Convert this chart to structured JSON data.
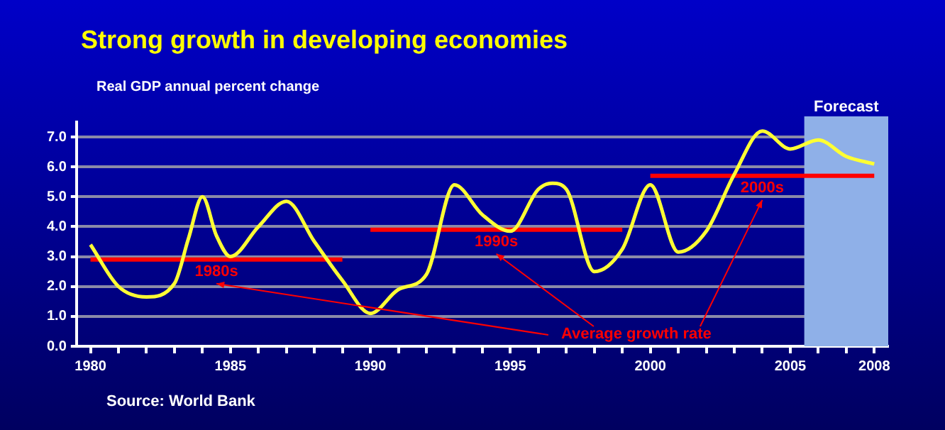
{
  "chart_data": {
    "type": "line",
    "title": "Strong growth in developing economies",
    "subtitle": "Real GDP annual percent change",
    "x": [
      1980,
      1981,
      1982,
      1983,
      1983.5,
      1984,
      1984.5,
      1985,
      1986,
      1987,
      1988,
      1989,
      1990,
      1991,
      1992,
      1993,
      1994,
      1995,
      1996,
      1996.5,
      1997,
      1998,
      1999,
      2000,
      2001,
      2002,
      2003,
      2004,
      2005,
      2006,
      2007,
      2008
    ],
    "series": [
      {
        "color": "#ffff33",
        "values": [
          3.4,
          2.0,
          1.65,
          2.1,
          3.6,
          5.0,
          3.7,
          3.0,
          4.0,
          4.85,
          3.5,
          2.2,
          1.1,
          1.9,
          2.4,
          5.4,
          4.4,
          3.85,
          5.25,
          5.45,
          5.25,
          2.5,
          3.25,
          5.4,
          3.15,
          3.85,
          5.75,
          7.2,
          6.6,
          6.9,
          6.35,
          6.1
        ]
      },
      {
        "name": "1980s",
        "color": "#ff0000",
        "x": [
          1980,
          1989
        ],
        "values": [
          2.9,
          2.9
        ]
      },
      {
        "name": "1990s",
        "color": "#ff0000",
        "x": [
          1990,
          1999
        ],
        "values": [
          3.9,
          3.9
        ]
      },
      {
        "name": "2000s",
        "color": "#ff0000",
        "x": [
          2000,
          2008
        ],
        "values": [
          5.7,
          5.7
        ]
      }
    ],
    "xlim": [
      1979.5,
      2008.5
    ],
    "xticks": [
      1980,
      {
        "value": 1981,
        "label": null
      },
      {
        "value": 1982,
        "label": null
      },
      {
        "value": 1983,
        "label": null
      },
      {
        "value": 1984,
        "label": null
      },
      1985,
      {
        "value": 1986,
        "label": null
      },
      {
        "value": 1987,
        "label": null
      },
      {
        "value": 1988,
        "label": null
      },
      {
        "value": 1989,
        "label": null
      },
      1990,
      {
        "value": 1991,
        "label": null
      },
      {
        "value": 1992,
        "label": null
      },
      {
        "value": 1993,
        "label": null
      },
      {
        "value": 1994,
        "label": null
      },
      1995,
      {
        "value": 1996,
        "label": null
      },
      {
        "value": 1997,
        "label": null
      },
      {
        "value": 1998,
        "label": null
      },
      {
        "value": 1999,
        "label": null
      },
      2000,
      {
        "value": 2001,
        "label": null
      },
      {
        "value": 2002,
        "label": null
      },
      {
        "value": 2003,
        "label": null
      },
      {
        "value": 2004,
        "label": null
      },
      2005,
      {
        "value": 2006,
        "label": null
      },
      {
        "value": 2007,
        "label": null
      },
      2008
    ],
    "ylim": [
      0,
      7.5
    ],
    "yticks": [
      {
        "value": 0,
        "label": "0.0"
      },
      {
        "value": 1,
        "label": "1.0"
      },
      {
        "value": 2,
        "label": "2.0"
      },
      {
        "value": 3,
        "label": "3.0"
      },
      {
        "value": 4,
        "label": "4.0"
      },
      {
        "value": 5,
        "label": "5.0"
      },
      {
        "value": 6,
        "label": "6.0"
      },
      {
        "value": 7,
        "label": "7.0"
      }
    ],
    "bands": [
      {
        "axis": "x",
        "from": 2005.5,
        "to": 2008.5,
        "label": "Forecast",
        "color": "#8fb0e8"
      }
    ],
    "annotations": [
      "Average growth rate",
      "Source: World Bank"
    ],
    "grid": "y",
    "legend": false,
    "marker": "none",
    "line_style": "solid"
  }
}
